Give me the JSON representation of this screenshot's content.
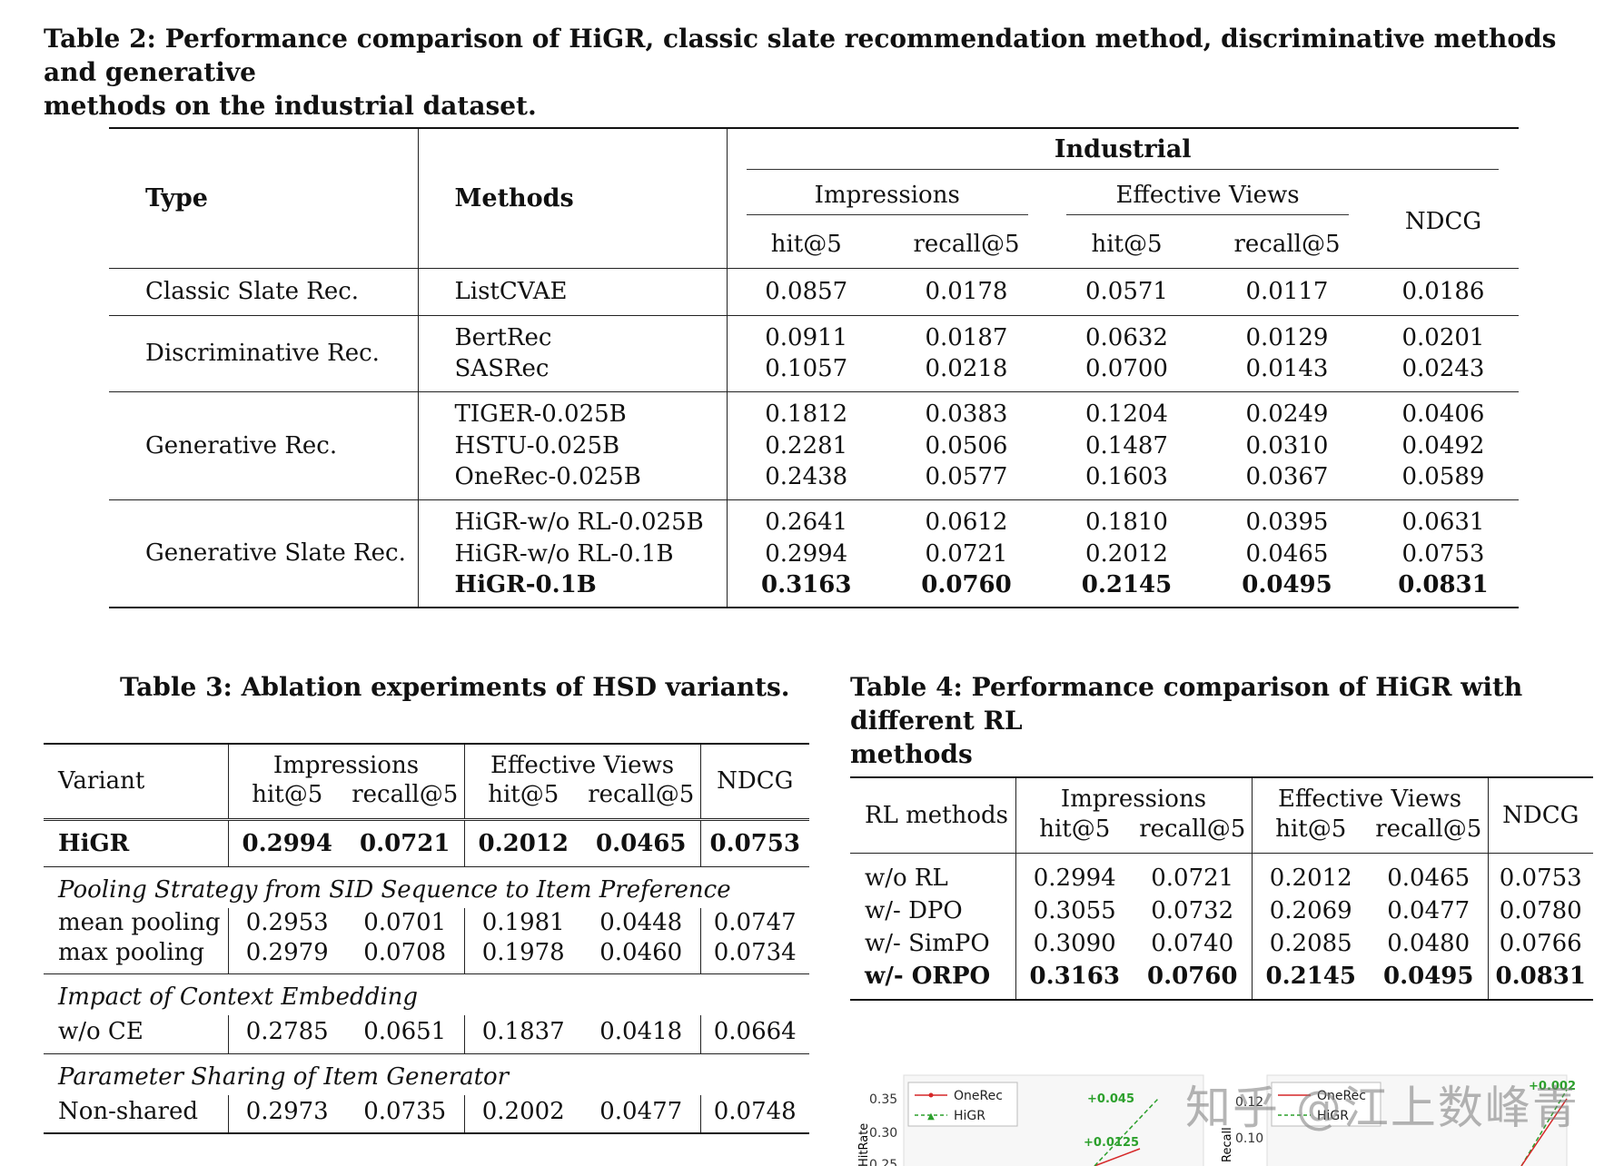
{
  "table2": {
    "caption": "Table 2: Performance comparison of HiGR, classic slate recommendation method, discriminative methods and generative methods on the industrial dataset.",
    "caption_line1": "Table 2: Performance comparison of HiGR, classic slate recommendation method, discriminative methods and generative",
    "caption_line2": "methods on the industrial dataset.",
    "headers": {
      "type": "Type",
      "methods": "Methods",
      "dataset": "Industrial",
      "impressions": "Impressions",
      "effective_views": "Effective Views",
      "ndcg": "NDCG",
      "hit5": "hit@5",
      "recall5": "recall@5"
    },
    "groups": [
      {
        "type": "Classic Slate Rec.",
        "rows": [
          {
            "method": "ListCVAE",
            "values": [
              "0.0857",
              "0.0178",
              "0.0571",
              "0.0117",
              "0.0186"
            ]
          }
        ]
      },
      {
        "type": "Discriminative Rec.",
        "rows": [
          {
            "method": "BertRec",
            "values": [
              "0.0911",
              "0.0187",
              "0.0632",
              "0.0129",
              "0.0201"
            ]
          },
          {
            "method": "SASRec",
            "values": [
              "0.1057",
              "0.0218",
              "0.0700",
              "0.0143",
              "0.0243"
            ]
          }
        ]
      },
      {
        "type": "Generative Rec.",
        "rows": [
          {
            "method": "TIGER-0.025B",
            "values": [
              "0.1812",
              "0.0383",
              "0.1204",
              "0.0249",
              "0.0406"
            ]
          },
          {
            "method": "HSTU-0.025B",
            "values": [
              "0.2281",
              "0.0506",
              "0.1487",
              "0.0310",
              "0.0492"
            ]
          },
          {
            "method": "OneRec-0.025B",
            "values": [
              "0.2438",
              "0.0577",
              "0.1603",
              "0.0367",
              "0.0589"
            ]
          }
        ]
      },
      {
        "type": "Generative Slate Rec.",
        "rows": [
          {
            "method": "HiGR-w/o RL-0.025B",
            "values": [
              "0.2641",
              "0.0612",
              "0.1810",
              "0.0395",
              "0.0631"
            ]
          },
          {
            "method": "HiGR-w/o RL-0.1B",
            "values": [
              "0.2994",
              "0.0721",
              "0.2012",
              "0.0465",
              "0.0753"
            ]
          },
          {
            "method": "HiGR-0.1B",
            "values": [
              "0.3163",
              "0.0760",
              "0.2145",
              "0.0495",
              "0.0831"
            ],
            "bold": true
          }
        ]
      }
    ]
  },
  "table3": {
    "caption": "Table 3: Ablation experiments of HSD variants.",
    "headers": {
      "variant": "Variant",
      "impressions": "Impressions",
      "effective_views": "Effective Views",
      "ndcg": "NDCG",
      "hit5": "hit@5",
      "recall5": "recall@5"
    },
    "main_row": {
      "name": "HiGR",
      "values": [
        "0.2994",
        "0.0721",
        "0.2012",
        "0.0465",
        "0.0753"
      ]
    },
    "sections": [
      {
        "title": "Pooling Strategy from SID Sequence to Item Preference",
        "rows": [
          {
            "name": "mean pooling",
            "values": [
              "0.2953",
              "0.0701",
              "0.1981",
              "0.0448",
              "0.0747"
            ]
          },
          {
            "name": "max pooling",
            "values": [
              "0.2979",
              "0.0708",
              "0.1978",
              "0.0460",
              "0.0734"
            ]
          }
        ]
      },
      {
        "title": "Impact of Context Embedding",
        "rows": [
          {
            "name": "w/o CE",
            "values": [
              "0.2785",
              "0.0651",
              "0.1837",
              "0.0418",
              "0.0664"
            ]
          }
        ]
      },
      {
        "title": "Parameter Sharing of Item Generator",
        "rows": [
          {
            "name": "Non-shared",
            "values": [
              "0.2973",
              "0.0735",
              "0.2002",
              "0.0477",
              "0.0748"
            ]
          }
        ]
      }
    ]
  },
  "table4": {
    "caption_line1": "Table 4: Performance comparison of HiGR with different RL",
    "caption_line2": "methods",
    "headers": {
      "rl_methods": "RL methods",
      "impressions": "Impressions",
      "effective_views": "Effective Views",
      "ndcg": "NDCG",
      "hit5": "hit@5",
      "recall5": "recall@5"
    },
    "rows": [
      {
        "name": "w/o RL",
        "values": [
          "0.2994",
          "0.0721",
          "0.2012",
          "0.0465",
          "0.0753"
        ]
      },
      {
        "name": "w/- DPO",
        "values": [
          "0.3055",
          "0.0732",
          "0.2069",
          "0.0477",
          "0.0780"
        ]
      },
      {
        "name": "w/- SimPO",
        "values": [
          "0.3090",
          "0.0740",
          "0.2085",
          "0.0480",
          "0.0766"
        ]
      },
      {
        "name": "w/- ORPO",
        "values": [
          "0.3163",
          "0.0760",
          "0.2145",
          "0.0495",
          "0.0831"
        ],
        "bold": true
      }
    ]
  },
  "chart_data": {
    "type": "line",
    "ylabel": "HitRate",
    "yticks": [
      "0.35",
      "0.30",
      "0.25"
    ],
    "legend": [
      "OneRec",
      "HiGR"
    ],
    "annotations": [
      "+0.045",
      "+0.0125"
    ],
    "right_panel": {
      "ylabel": "Recall",
      "yticks": [
        "0.12",
        "0.10"
      ],
      "legend": [
        "OneRec",
        "HiGR"
      ],
      "annotations": [
        "+0.002"
      ]
    },
    "colors": {
      "onerec": "#d62728",
      "higr": "#2ca02c"
    }
  },
  "watermark": "知乎 @江上数峰青"
}
